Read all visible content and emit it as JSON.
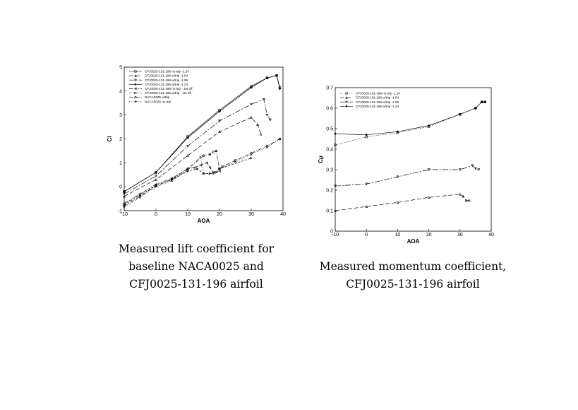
{
  "chart_data": [
    {
      "type": "line",
      "xlabel": "AOA",
      "ylabel": "Cl",
      "xlim": [
        -10,
        40
      ],
      "ylim": [
        -1,
        5
      ],
      "xticks": [
        -10,
        0,
        10,
        20,
        30,
        40
      ],
      "yticks": [
        -1,
        0,
        1,
        2,
        3,
        4,
        5
      ],
      "legend_position": "top-left",
      "caption": [
        "Measured lift coefficient for",
        "baseline NACA0025 and",
        "CFJ0025-131-196 airfoil"
      ],
      "series": [
        {
          "name": "CFJ0025-131-196 no trip -1.24",
          "marker": "square",
          "dash": "none",
          "x": [
            -10,
            0,
            10,
            20,
            30,
            35,
            38,
            39
          ],
          "y": [
            -0.2,
            0.6,
            2.1,
            3.2,
            4.2,
            4.55,
            4.65,
            4.15
          ]
        },
        {
          "name": "CFJ0025-131-196 w/trip -1.04",
          "marker": "triangle",
          "dash": "6,3",
          "x": [
            -10,
            0,
            10,
            20,
            30,
            32,
            33
          ],
          "y": [
            -0.4,
            0.3,
            1.3,
            2.3,
            2.9,
            2.6,
            2.2
          ]
        },
        {
          "name": "CFJ0025-131-196 w/trip -1.09",
          "marker": "triangle-down",
          "dash": "8,2,2,2",
          "x": [
            -10,
            0,
            10,
            20,
            30,
            34,
            35,
            36
          ],
          "y": [
            -0.3,
            0.45,
            1.7,
            2.75,
            3.45,
            3.65,
            3.0,
            2.8
          ]
        },
        {
          "name": "CFJ0025-131-196 w/trip -1.24",
          "marker": "diamond",
          "dash": "none",
          "x": [
            -10,
            0,
            10,
            20,
            30,
            35,
            38,
            39
          ],
          "y": [
            -0.2,
            0.6,
            2.05,
            3.15,
            4.15,
            4.55,
            4.65,
            4.1
          ]
        },
        {
          "name": "CFJ0025-131-196 no trip - Jet off",
          "marker": "triangle-left",
          "dash": "6,2,2,2,2,2",
          "x": [
            -10,
            -5,
            0,
            5,
            10,
            12,
            14,
            16,
            17,
            18,
            20
          ],
          "y": [
            -0.7,
            -0.3,
            0.1,
            0.35,
            0.75,
            0.8,
            0.9,
            1.0,
            0.8,
            0.6,
            0.65
          ]
        },
        {
          "name": "CFJ0025-131-196 w/trip - Jet off",
          "marker": "triangle-right",
          "dash": "3,2",
          "x": [
            -10,
            -5,
            0,
            5,
            10,
            13,
            15,
            17,
            19,
            20,
            30
          ],
          "y": [
            -0.75,
            -0.35,
            0.05,
            0.3,
            0.65,
            0.75,
            0.55,
            0.55,
            0.6,
            0.75,
            1.2
          ]
        },
        {
          "name": "NACA0025 w/trip",
          "marker": "circle",
          "dash": "5,2,1,2",
          "x": [
            -10,
            -5,
            0,
            5,
            10,
            15,
            17,
            18,
            19,
            20,
            21,
            25,
            30,
            35,
            39
          ],
          "y": [
            -0.8,
            -0.4,
            0.05,
            0.3,
            0.75,
            1.3,
            1.35,
            1.45,
            1.5,
            0.75,
            0.85,
            1.1,
            1.4,
            1.7,
            2.0
          ]
        },
        {
          "name": "NACA0025 no trip",
          "marker": "cross",
          "dash": "1,1.5",
          "x": [
            -10,
            -5,
            0,
            5,
            10,
            14,
            15,
            18,
            20,
            25,
            30,
            35,
            39
          ],
          "y": [
            -0.85,
            -0.45,
            0.0,
            0.25,
            0.7,
            1.25,
            0.55,
            0.55,
            0.75,
            1.05,
            1.35,
            1.65,
            2.0
          ]
        }
      ]
    },
    {
      "type": "line",
      "xlabel": "AOA",
      "ylabel": "Cμ",
      "xlim": [
        -10,
        40
      ],
      "ylim": [
        0,
        0.7
      ],
      "xticks": [
        -10,
        0,
        10,
        20,
        30,
        40
      ],
      "yticks": [
        0,
        0.1,
        0.2,
        0.3,
        0.4,
        0.5,
        0.6,
        0.7
      ],
      "legend_position": "top-left",
      "caption": [
        "Measured momentum coefficient,",
        "CFJ0025-131-196 airfoil"
      ],
      "series": [
        {
          "name": "CFJ0025-131-196 no trip -1.24",
          "marker": "square",
          "dash": "1,1.5",
          "x": [
            -10,
            0,
            10,
            20,
            30,
            35,
            37,
            38
          ],
          "y": [
            0.42,
            0.46,
            0.48,
            0.51,
            0.57,
            0.6,
            0.63,
            0.63
          ]
        },
        {
          "name": "CFJ0025-131-196 w/trip -1.04",
          "marker": "triangle",
          "dash": "6,3",
          "x": [
            -10,
            0,
            10,
            20,
            30,
            31,
            32,
            33
          ],
          "y": [
            0.1,
            0.12,
            0.14,
            0.165,
            0.18,
            0.17,
            0.15,
            0.15
          ]
        },
        {
          "name": "CFJ0025-131-196 w/trip -1.09",
          "marker": "triangle-down",
          "dash": "8,2,2,2",
          "x": [
            -10,
            0,
            10,
            20,
            30,
            34,
            35,
            36
          ],
          "y": [
            0.22,
            0.23,
            0.265,
            0.3,
            0.3,
            0.32,
            0.305,
            0.3
          ]
        },
        {
          "name": "CFJ0025-131-196 w/trip -1.24",
          "marker": "diamond",
          "dash": "none",
          "x": [
            -10,
            0,
            10,
            20,
            30,
            35,
            37,
            38
          ],
          "y": [
            0.475,
            0.47,
            0.485,
            0.515,
            0.57,
            0.6,
            0.63,
            0.63
          ]
        }
      ]
    }
  ]
}
